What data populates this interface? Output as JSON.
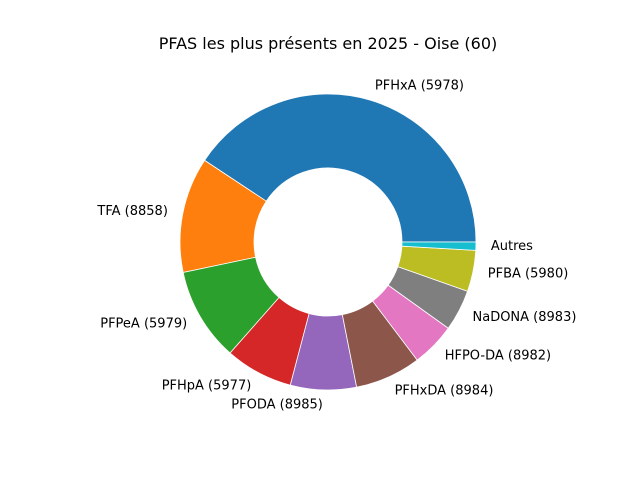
{
  "chart_data": {
    "type": "pie",
    "style": "donut",
    "title": "PFAS les plus présents en 2025 - Oise (60)",
    "categories": [
      "PFHxA (5978)",
      "TFA (8858)",
      "PFPeA (5979)",
      "PFHpA (5977)",
      "PFODA (8985)",
      "PFHxDA (8984)",
      "HFPO-DA (8982)",
      "NaDONA (8983)",
      "PFBA (5980)",
      "Autres"
    ],
    "values": [
      40.7,
      12.6,
      10.2,
      7.4,
      7.2,
      7.2,
      4.8,
      4.5,
      4.5,
      0.9
    ],
    "colors": [
      "#1f77b4",
      "#ff7f0e",
      "#2ca02c",
      "#d62728",
      "#9467bd",
      "#8c564b",
      "#e377c2",
      "#7f7f7f",
      "#bcbd22",
      "#17becf"
    ],
    "start_angle_deg": 0,
    "direction": "counterclockwise",
    "legend": "none"
  }
}
